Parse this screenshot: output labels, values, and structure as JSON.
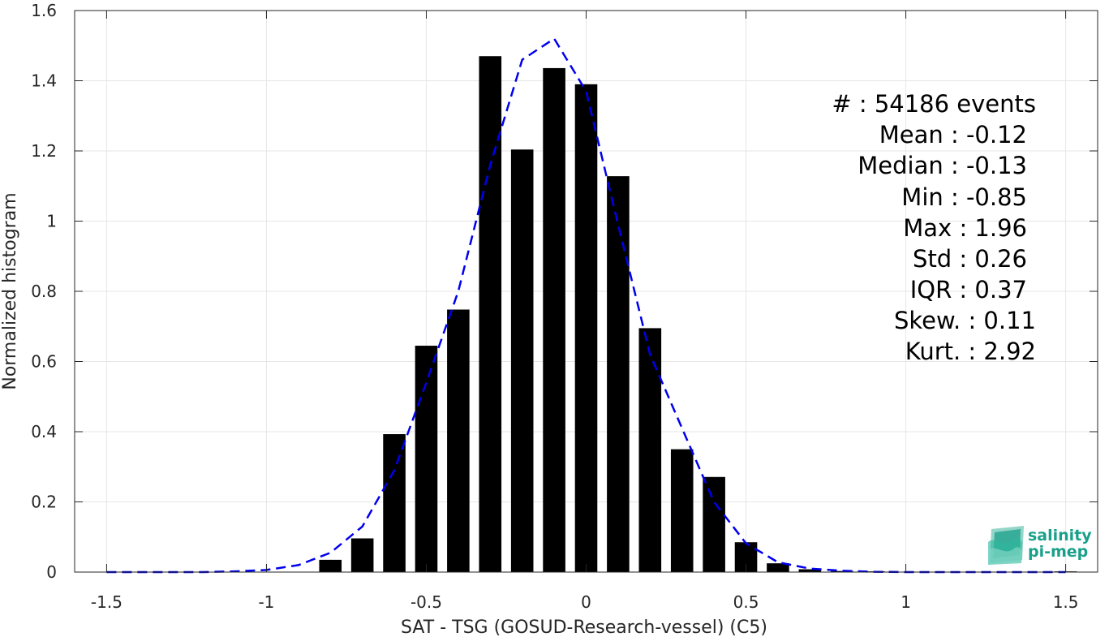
{
  "chart_data": {
    "type": "bar",
    "xlabel": "SAT - TSG (GOSUD-Research-vessel) (C5)",
    "ylabel": "Normalized histogram",
    "xlim": [
      -1.6,
      1.6
    ],
    "ylim": [
      0,
      1.6
    ],
    "xticks": [
      -1.5,
      -1,
      -0.5,
      0,
      0.5,
      1,
      1.5
    ],
    "xtick_labels": [
      "-1.5",
      "-1",
      "-0.5",
      "0",
      "0.5",
      "1",
      "1.5"
    ],
    "yticks": [
      0,
      0.2,
      0.4,
      0.6,
      0.8,
      1,
      1.2,
      1.4,
      1.6
    ],
    "ytick_labels": [
      "0",
      "0.2",
      "0.4",
      "0.6",
      "0.8",
      "1",
      "1.2",
      "1.4",
      "1.6"
    ],
    "grid": true,
    "bar_color": "#000000",
    "bar_width": 0.07,
    "bars": [
      {
        "x": -0.8,
        "y": 0.035
      },
      {
        "x": -0.7,
        "y": 0.096
      },
      {
        "x": -0.6,
        "y": 0.393
      },
      {
        "x": -0.5,
        "y": 0.645
      },
      {
        "x": -0.4,
        "y": 0.748
      },
      {
        "x": -0.3,
        "y": 1.47
      },
      {
        "x": -0.2,
        "y": 1.204
      },
      {
        "x": -0.1,
        "y": 1.436
      },
      {
        "x": 0.0,
        "y": 1.39
      },
      {
        "x": 0.1,
        "y": 1.128
      },
      {
        "x": 0.2,
        "y": 0.695
      },
      {
        "x": 0.3,
        "y": 0.35
      },
      {
        "x": 0.4,
        "y": 0.271
      },
      {
        "x": 0.5,
        "y": 0.085
      },
      {
        "x": 0.6,
        "y": 0.025
      },
      {
        "x": 0.7,
        "y": 0.008
      },
      {
        "x": 0.8,
        "y": 0.003
      },
      {
        "x": 0.9,
        "y": 0.002
      },
      {
        "x": 1.0,
        "y": 0.001
      },
      {
        "x": 1.1,
        "y": 0.001
      },
      {
        "x": 1.2,
        "y": 0.001
      },
      {
        "x": 1.3,
        "y": 0.001
      },
      {
        "x": 1.4,
        "y": 0.0
      },
      {
        "x": 1.5,
        "y": 0.002
      }
    ],
    "fit_curve": {
      "style": "dashed",
      "color": "#0000ee",
      "x": [
        -1.5,
        -1.4,
        -1.3,
        -1.2,
        -1.1,
        -1.0,
        -0.9,
        -0.8,
        -0.7,
        -0.6,
        -0.5,
        -0.4,
        -0.3,
        -0.2,
        -0.1,
        0.0,
        0.1,
        0.2,
        0.3,
        0.4,
        0.5,
        0.6,
        0.7,
        0.8,
        0.9,
        1.0,
        1.1,
        1.2,
        1.3,
        1.4,
        1.5
      ],
      "y": [
        0.0,
        0.0,
        0.0,
        0.0,
        0.002,
        0.006,
        0.02,
        0.055,
        0.13,
        0.29,
        0.54,
        0.8,
        1.16,
        1.46,
        1.52,
        1.37,
        0.99,
        0.62,
        0.41,
        0.2,
        0.082,
        0.028,
        0.01,
        0.004,
        0.001,
        0.0,
        0.0,
        0.0,
        0.0,
        0.0,
        0.0
      ]
    }
  },
  "stats": {
    "lines": [
      "#  : 54186 events",
      "Mean : -0.12",
      "Median : -0.13",
      "Min : -0.85",
      "Max : 1.96",
      "Std : 0.26",
      "IQR : 0.37",
      "Skew. : 0.11",
      "Kurt. : 2.92"
    ]
  },
  "logo": {
    "line1": "salinity",
    "line2": "pi-mep",
    "color": "#1aa08a"
  }
}
